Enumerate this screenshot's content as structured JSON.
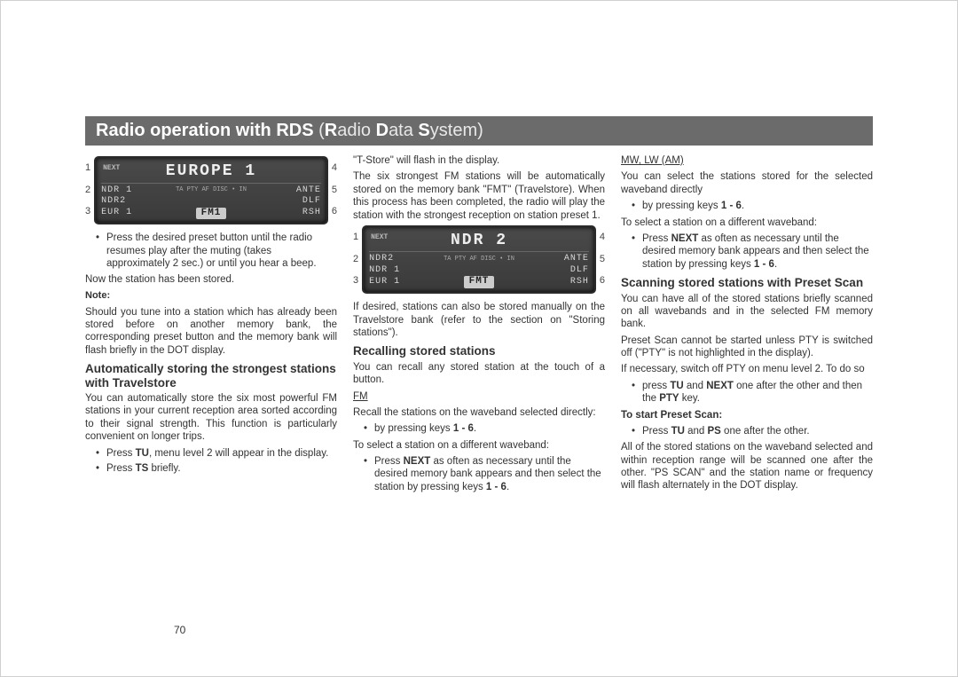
{
  "title": {
    "left": "Radio operation with RDS",
    "right_plain": "adio ",
    "right_plain2": "ata ",
    "right_plain3": "ystem",
    "paren_open": " (",
    "paren_close": ")",
    "R": "R",
    "D": "D",
    "S": "S"
  },
  "page_number": "70",
  "lcd1": {
    "big_pre": "NEXT",
    "big": "EUROPE 1",
    "r1": {
      "l": "NDR 1",
      "m": "TA PTY AF\nDISC • IN",
      "r": "ANTE"
    },
    "r2": {
      "l": "NDR2",
      "m": "",
      "r": "DLF"
    },
    "r3": {
      "l": "EUR 1",
      "m": "FM1",
      "r": "RSH"
    },
    "nums_left": [
      "1",
      "2",
      "3"
    ],
    "nums_right": [
      "4",
      "5",
      "6"
    ]
  },
  "lcd2": {
    "big_pre": "NEXT",
    "big": "NDR 2",
    "r1": {
      "l": "NDR2",
      "m": "TA PTY AF\nDISC • IN",
      "r": "ANTE"
    },
    "r2": {
      "l": "NDR 1",
      "m": "",
      "r": "DLF"
    },
    "r3": {
      "l": "EUR 1",
      "m": "FMT",
      "r": "RSH"
    },
    "nums_left": [
      "1",
      "2",
      "3"
    ],
    "nums_right": [
      "4",
      "5",
      "6"
    ]
  },
  "col1": {
    "b1": "Press the desired preset button until the radio resumes play after the muting (takes approximately 2 sec.) or until you hear a beep.",
    "p1": "Now the station has been stored.",
    "note": "Note:",
    "p2": "Should you tune into a station which has already been stored before on another memory bank, the corresponding preset button and the memory bank will flash briefly in the DOT display.",
    "h2": "Automatically storing the strongest stations with Travelstore",
    "p3": "You can automatically store the six most powerful FM stations in your current reception area sorted according to their signal strength. This function is particularly convenient on longer trips.",
    "b2a": "Press ",
    "b2b": "TU",
    "b2c": ", menu level 2 will appear in the display.",
    "b3a": "Press ",
    "b3b": "TS",
    "b3c": " briefly."
  },
  "col2": {
    "p1": "\"T-Store\" will flash in the display.",
    "p2": "The six strongest FM stations will be automatically stored on the memory bank \"FMT\" (Travelstore). When this process has been completed, the radio will play the station with the strongest reception on station preset 1.",
    "p3": "If desired, stations can also be stored manually on the Travelstore bank (refer to the section on \"Storing stations\").",
    "h2": "Recalling stored stations",
    "p4": "You can recall any stored station at the touch of a button.",
    "fm": "FM",
    "p5": "Recall the stations on the waveband selected directly:",
    "b1a": "by pressing keys ",
    "b1b": "1 - 6",
    "b1c": ".",
    "p6": "To select a station on a different waveband:",
    "b2a": "Press ",
    "b2b": "NEXT",
    "b2c": " as often as necessary until the desired memory bank appears and then select the station by pressing keys ",
    "b2d": "1 - 6",
    "b2e": "."
  },
  "col3": {
    "mw": "MW, LW (AM)",
    "p1": "You can select the stations stored for the selected waveband directly",
    "b1a": "by pressing keys ",
    "b1b": "1 - 6",
    "b1c": ".",
    "p2": "To select a station on a different waveband:",
    "b2a": "Press ",
    "b2b": "NEXT",
    "b2c": " as often as necessary until the desired memory bank appears and then select the station by pressing keys ",
    "b2d": "1 - 6",
    "b2e": ".",
    "h2": "Scanning stored stations with Preset Scan",
    "p3": "You can have all of the stored stations briefly scanned on all wavebands and in the selected FM memory bank.",
    "p4": "Preset Scan cannot be started unless PTY is switched off (\"PTY\" is not highlighted in the display).",
    "p5": "If necessary, switch off PTY on menu level 2. To do so",
    "b3a": "press ",
    "b3b": "TU",
    "b3c": " and ",
    "b3d": "NEXT",
    "b3e": " one after the other and then the ",
    "b3f": "PTY",
    "b3g": " key.",
    "h3": "To start Preset Scan:",
    "b4a": "Press ",
    "b4b": "TU",
    "b4c": " and ",
    "b4d": "PS",
    "b4e": " one after the other.",
    "p6": "All of the stored stations on the waveband selected and within reception range will be scanned one after the other. \"PS SCAN\" and the station name or frequency will flash alternately in the DOT display."
  }
}
